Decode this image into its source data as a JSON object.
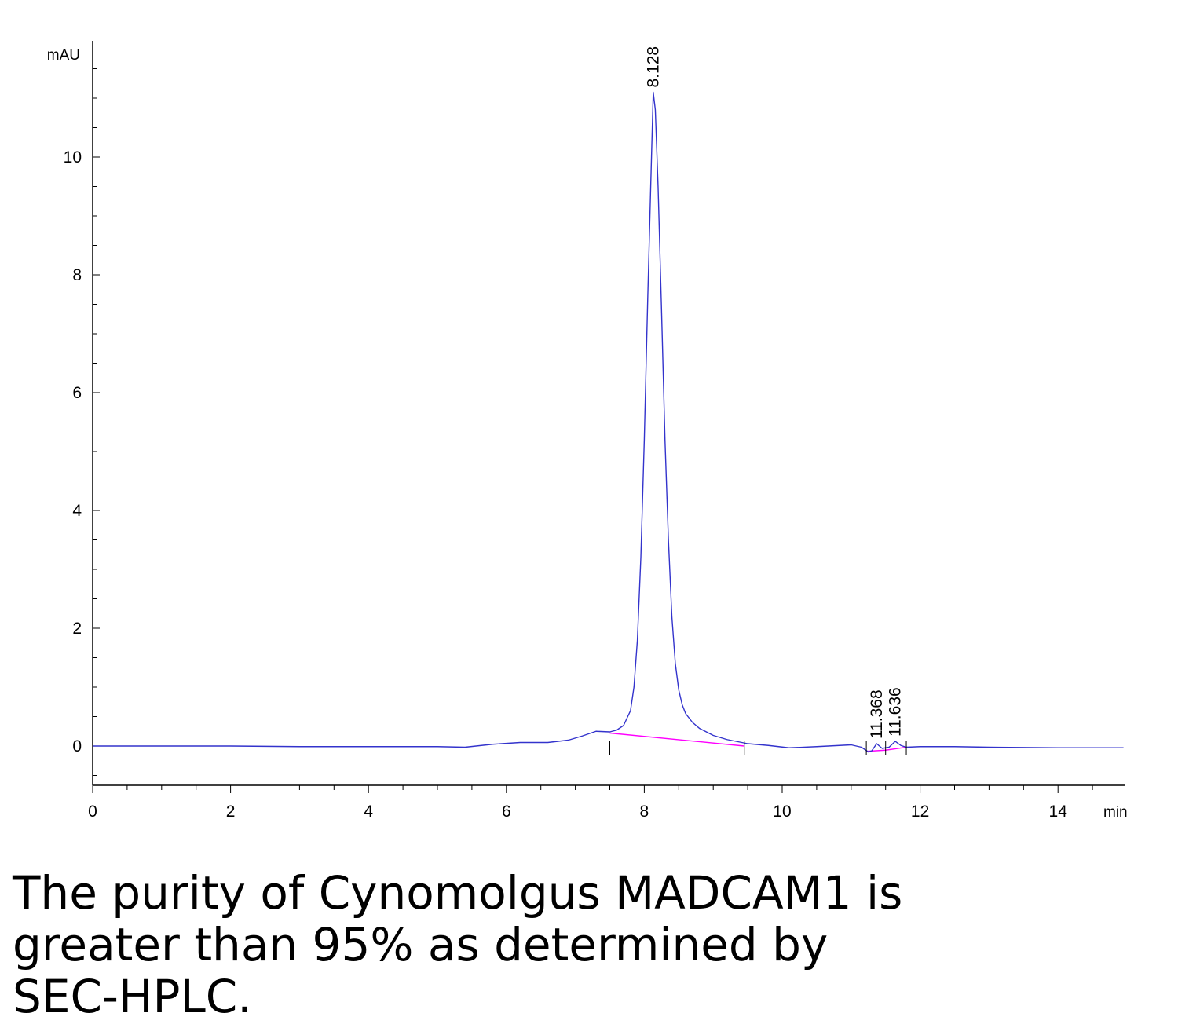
{
  "chart_data": {
    "type": "line",
    "title": "",
    "xlabel": "min",
    "ylabel": "mAU",
    "xlim": [
      0,
      14.95
    ],
    "ylim": [
      -0.68,
      11.7
    ],
    "x_ticks": [
      0,
      2,
      4,
      6,
      8,
      10,
      12,
      14
    ],
    "y_ticks": [
      0,
      2,
      4,
      6,
      8,
      10
    ],
    "grid": false,
    "legend": "none",
    "series": [
      {
        "color": "#3333cc",
        "x": [
          0,
          1,
          2,
          3,
          4,
          5,
          5.4,
          5.8,
          6.2,
          6.6,
          6.9,
          7.1,
          7.3,
          7.5,
          7.6,
          7.7,
          7.8,
          7.85,
          7.9,
          7.95,
          8.0,
          8.05,
          8.1,
          8.13,
          8.16,
          8.2,
          8.25,
          8.3,
          8.35,
          8.4,
          8.45,
          8.5,
          8.55,
          8.6,
          8.7,
          8.8,
          9.0,
          9.2,
          9.5,
          9.8,
          10.1,
          10.5,
          11.0,
          11.15,
          11.25,
          11.3,
          11.37,
          11.45,
          11.55,
          11.64,
          11.72,
          11.8,
          12.0,
          12.5,
          13.0,
          14.0,
          14.95
        ],
        "y": [
          0.0,
          0.0,
          0.0,
          -0.01,
          -0.01,
          -0.01,
          -0.02,
          0.03,
          0.06,
          0.06,
          0.1,
          0.17,
          0.25,
          0.24,
          0.27,
          0.35,
          0.6,
          1.0,
          1.8,
          3.2,
          5.2,
          7.6,
          9.8,
          11.1,
          10.8,
          9.5,
          7.4,
          5.2,
          3.5,
          2.2,
          1.4,
          0.95,
          0.7,
          0.55,
          0.4,
          0.3,
          0.18,
          0.11,
          0.04,
          0.01,
          -0.03,
          -0.01,
          0.02,
          -0.02,
          -0.1,
          -0.08,
          0.04,
          -0.04,
          -0.02,
          0.08,
          0.01,
          -0.02,
          -0.01,
          -0.01,
          -0.02,
          -0.03,
          -0.03
        ]
      }
    ],
    "baselines": [
      {
        "color": "#ff00ff",
        "x": [
          7.5,
          9.45
        ],
        "y": [
          0.22,
          0.0
        ]
      },
      {
        "color": "#ff00ff",
        "x": [
          11.22,
          11.5,
          11.8
        ],
        "y": [
          -0.09,
          -0.07,
          -0.02
        ]
      }
    ],
    "peak_labels": [
      {
        "x": 8.128,
        "y": 11.1,
        "text": "8.128"
      },
      {
        "x": 11.368,
        "y": 0.04,
        "text": "11.368"
      },
      {
        "x": 11.636,
        "y": 0.08,
        "text": "11.636"
      }
    ],
    "integration_marks": [
      7.5,
      9.45,
      11.22,
      11.5,
      11.8
    ]
  },
  "caption": "The purity of Cynomolgus MADCAM1 is greater than 95% as determined by SEC-HPLC."
}
